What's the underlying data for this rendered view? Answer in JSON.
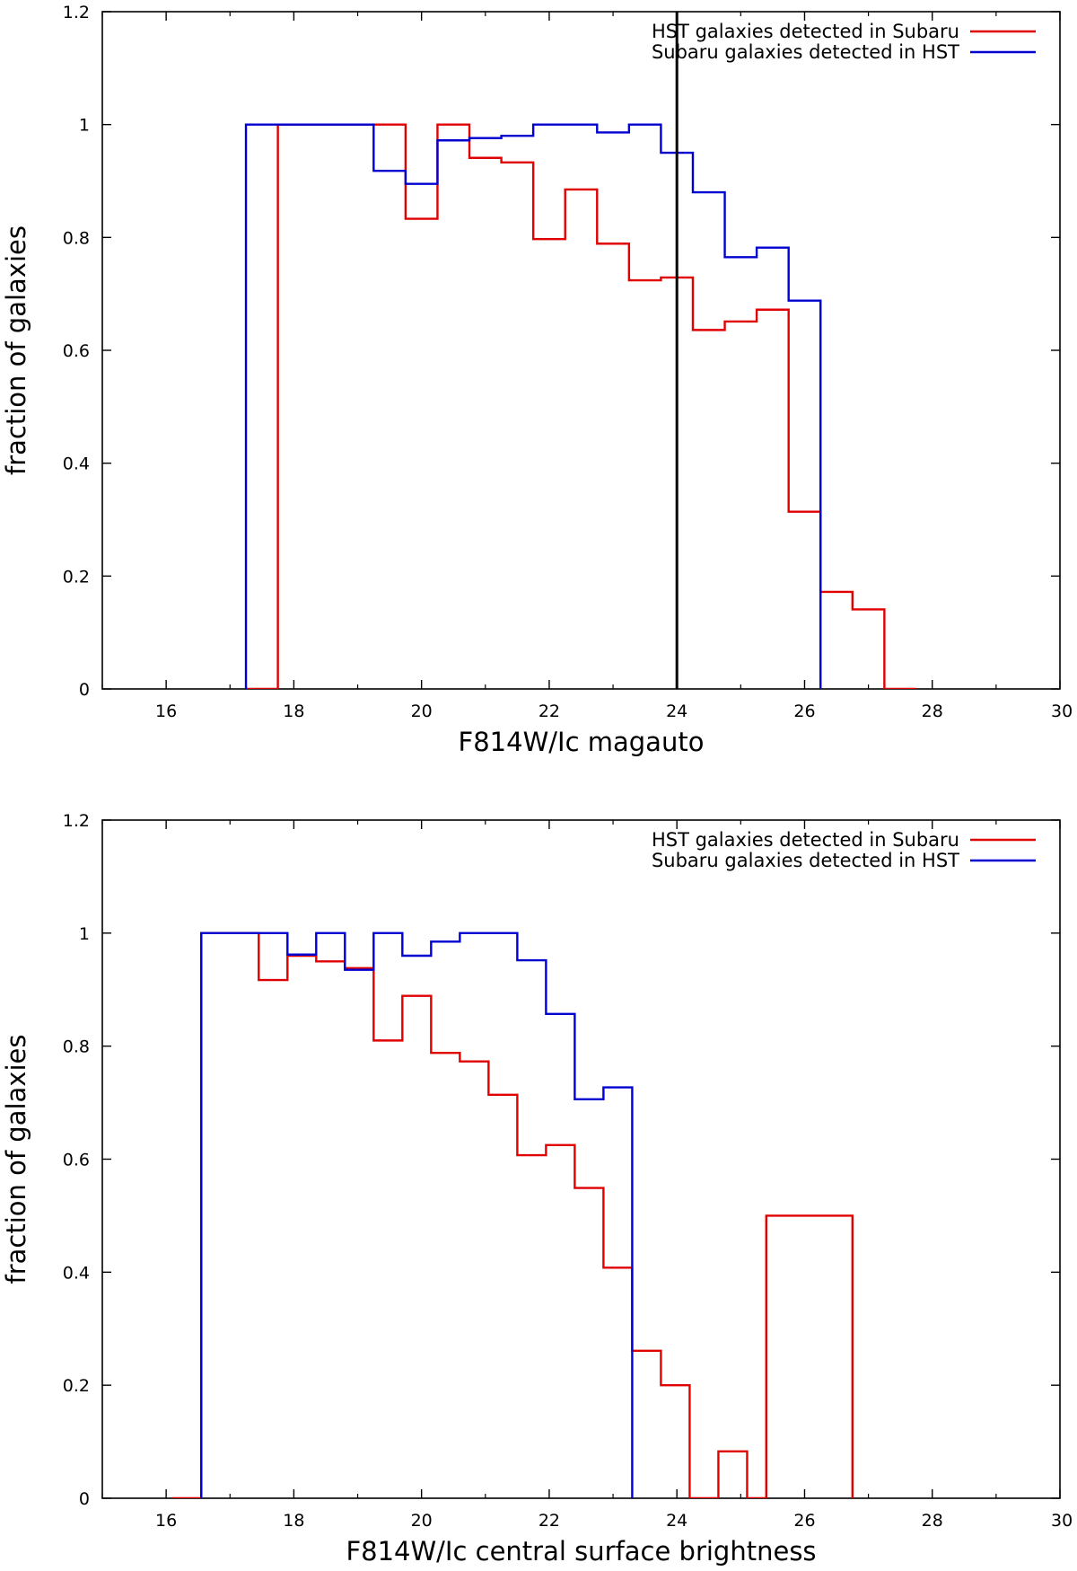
{
  "chart_data": [
    {
      "type": "line",
      "step": "histogram",
      "xlabel": "F814W/Ic magauto",
      "ylabel": "fraction of galaxies",
      "xlim": [
        15,
        30
      ],
      "ylim": [
        0,
        1.2
      ],
      "xticks": [
        "16",
        "18",
        "20",
        "22",
        "24",
        "26",
        "28",
        "30"
      ],
      "yticks": [
        "0",
        "0.2",
        "0.4",
        "0.6",
        "0.8",
        "1",
        "1.2"
      ],
      "legend_position": "top-right",
      "vertical_line": {
        "x": 24,
        "color": "#000000"
      },
      "series": [
        {
          "name": "HST galaxies detected in Subaru",
          "color": "#e00000",
          "edges": [
            17.25,
            17.75,
            18.25,
            18.75,
            19.25,
            19.75,
            20.25,
            20.75,
            21.25,
            21.75,
            22.25,
            22.75,
            23.25,
            23.75,
            24.25,
            24.75,
            25.25,
            25.75,
            26.25,
            26.75,
            27.25,
            27.75
          ],
          "values": [
            0,
            1,
            1,
            1,
            1,
            0.833,
            1,
            0.941,
            0.933,
            0.797,
            0.885,
            0.789,
            0.724,
            0.729,
            0.636,
            0.651,
            0.672,
            0.314,
            0.172,
            0.141,
            0
          ]
        },
        {
          "name": "Subaru galaxies detected in HST",
          "color": "#0000d0",
          "edges": [
            17.25,
            17.75,
            18.25,
            18.75,
            19.25,
            19.75,
            20.25,
            20.75,
            21.25,
            21.75,
            22.25,
            22.75,
            23.25,
            23.75,
            24.25,
            24.75,
            25.25,
            25.75,
            26.25
          ],
          "values": [
            1,
            1,
            1,
            1,
            0.918,
            0.895,
            0.972,
            0.976,
            0.98,
            1,
            1,
            0.986,
            1,
            0.95,
            0.88,
            0.765,
            0.782,
            0.688
          ]
        }
      ]
    },
    {
      "type": "line",
      "step": "histogram",
      "xlabel": "F814W/Ic central surface brightness",
      "ylabel": "fraction of galaxies",
      "xlim": [
        15,
        30
      ],
      "ylim": [
        0,
        1.2
      ],
      "xticks": [
        "16",
        "18",
        "20",
        "22",
        "24",
        "26",
        "28",
        "30"
      ],
      "yticks": [
        "0",
        "0.2",
        "0.4",
        "0.6",
        "0.8",
        "1",
        "1.2"
      ],
      "legend_position": "top-right",
      "series": [
        {
          "name": "HST galaxies detected in Subaru",
          "color": "#e00000",
          "edges": [
            16.1,
            16.55,
            17.0,
            17.45,
            17.9,
            18.35,
            18.8,
            19.25,
            19.7,
            20.15,
            20.6,
            21.05,
            21.5,
            21.95,
            22.4,
            22.85,
            23.3,
            23.75,
            24.2,
            24.65,
            25.1,
            25.4,
            26.75
          ],
          "values": [
            0,
            1,
            1,
            0.917,
            0.96,
            0.95,
            0.938,
            0.81,
            0.889,
            0.788,
            0.773,
            0.714,
            0.607,
            0.625,
            0.549,
            0.408,
            0.261,
            0.2,
            0,
            0.083,
            0,
            0.5
          ]
        },
        {
          "name": "Subaru galaxies detected in HST",
          "color": "#0000d0",
          "edges": [
            16.55,
            17.0,
            17.45,
            17.9,
            18.35,
            18.8,
            19.25,
            19.7,
            20.15,
            20.6,
            21.05,
            21.5,
            21.95,
            22.4,
            22.85,
            23.3
          ],
          "values": [
            1,
            1,
            1,
            0.962,
            1,
            0.935,
            1,
            0.96,
            0.985,
            1,
            1,
            0.952,
            0.857,
            0.706,
            0.727
          ]
        }
      ]
    }
  ]
}
